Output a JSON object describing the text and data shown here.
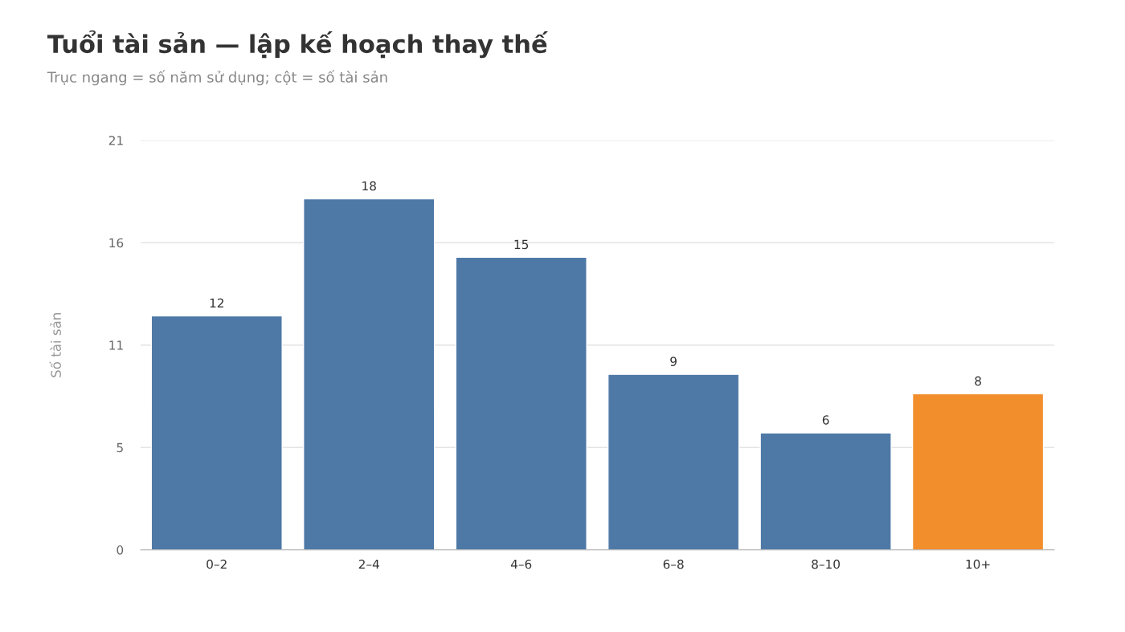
{
  "chart_data": {
    "type": "bar",
    "title": "Tuổi tài sản — lập kế hoạch thay thế",
    "subtitle": "Trục ngang = số năm sử dụng; cột = số tài sản",
    "ylabel": "Số tài sản",
    "categories": [
      "0–2",
      "2–4",
      "4–6",
      "6–8",
      "8–10",
      "10+"
    ],
    "values": [
      12,
      18,
      15,
      9,
      6,
      8
    ],
    "colors": [
      "#4e79a7",
      "#4e79a7",
      "#4e79a7",
      "#4e79a7",
      "#4e79a7",
      "#f28e2b"
    ],
    "ylim": [
      0,
      21
    ],
    "yticks": [
      0,
      {
        "value": 5.25,
        "label": "5"
      },
      {
        "value": 10.5,
        "label": "11"
      },
      {
        "value": 15.75,
        "label": "16"
      },
      21
    ],
    "grid": "y",
    "data_labels": true,
    "legend": false
  }
}
